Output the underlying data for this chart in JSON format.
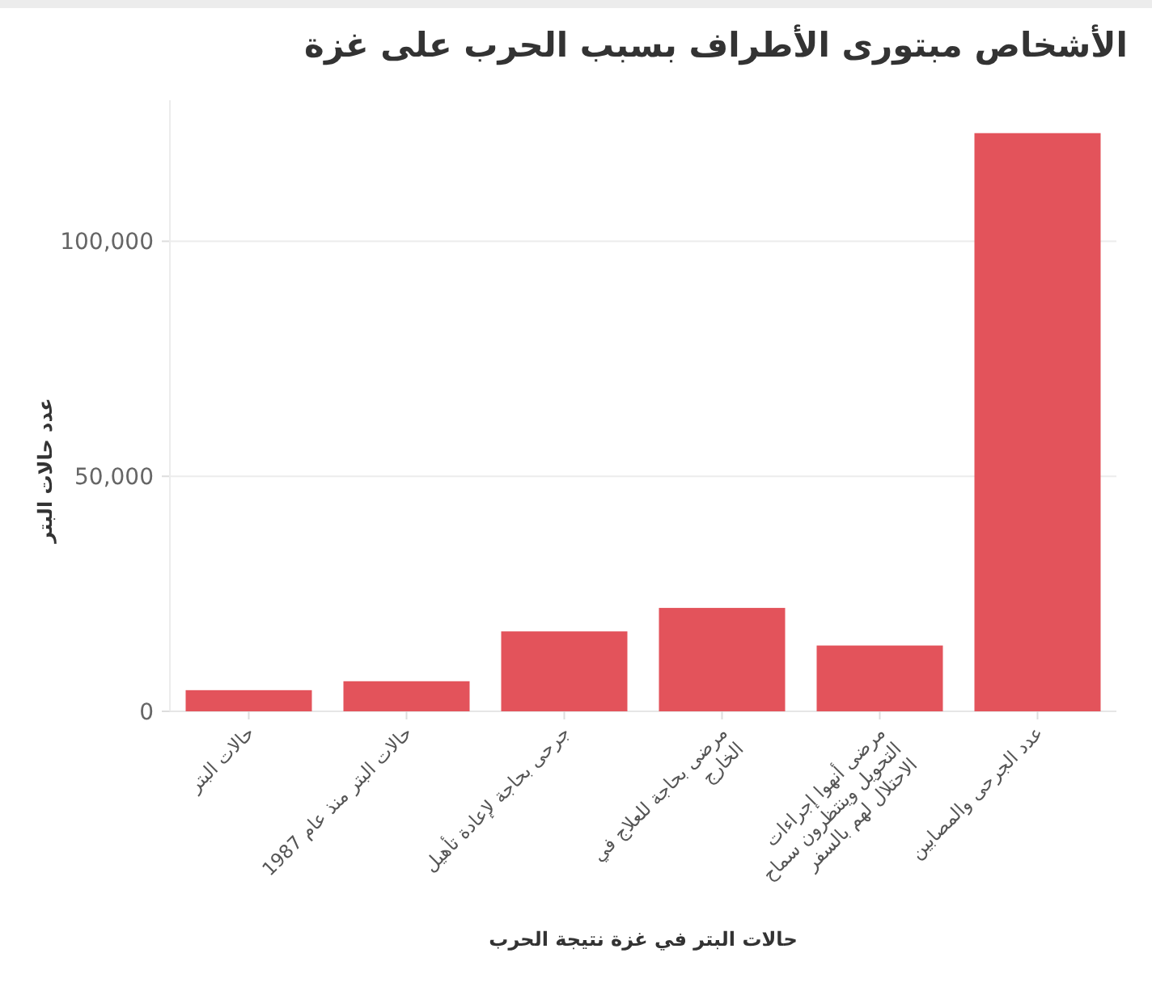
{
  "chart_data": {
    "type": "bar",
    "title": "الأشخاص مبتورى الأطراف بسبب الحرب على غزة",
    "xlabel": "حالات البتر في غزة نتيجة الحرب",
    "ylabel": "عدد حالات البتر",
    "categories": [
      "حالات البتر",
      "حالات البتر منذ عام 1987",
      "جرحى بحاجة لإعادة تأهيل",
      "مرضى بحاجة للعلاج في الخارج",
      "مرضى أنهوا إجراءات التحويل وينتظرون سماح الاحتلال لهم بالسفر",
      "عدد الجرحى والمصابين"
    ],
    "values": [
      4500,
      6400,
      17000,
      22000,
      14000,
      123000
    ],
    "color": "#e3535b",
    "ylim": [
      0,
      130000
    ],
    "yticks": [
      {
        "value": 0,
        "label": "0"
      },
      {
        "value": 50000,
        "label": "50,000"
      },
      {
        "value": 100000,
        "label": "100,000"
      }
    ],
    "grid": "y"
  }
}
